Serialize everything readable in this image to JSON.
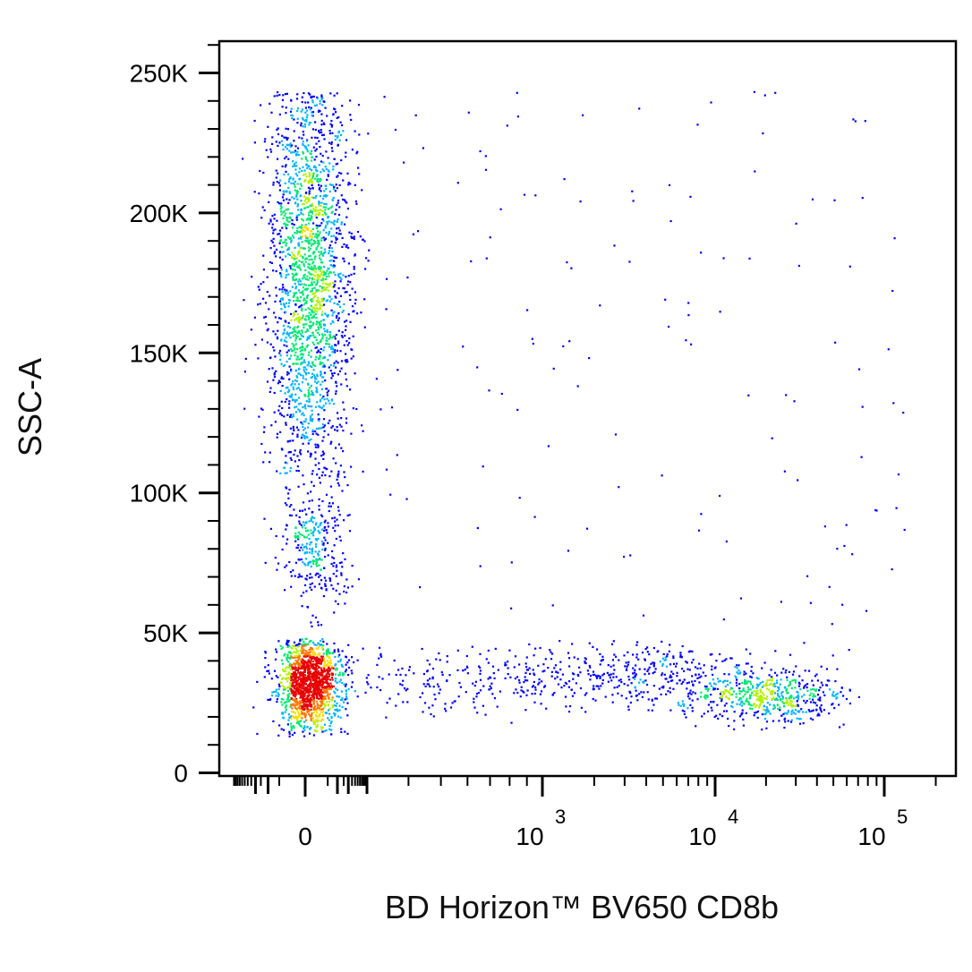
{
  "chart_data": {
    "type": "scatter",
    "title": "",
    "xlabel": "BD Horizon™ BV650 CD8b",
    "ylabel": "SSC-A",
    "x_scale": "biexponential",
    "y_scale": "linear",
    "ylim": [
      0,
      262144
    ],
    "y_ticks": [
      {
        "value": 0,
        "label": "0"
      },
      {
        "value": 50000,
        "label": "50K"
      },
      {
        "value": 100000,
        "label": "100K"
      },
      {
        "value": 150000,
        "label": "150K"
      },
      {
        "value": 200000,
        "label": "200K"
      },
      {
        "value": 250000,
        "label": "250K"
      }
    ],
    "x_ticks": [
      {
        "value": 0,
        "base": "0",
        "exp": ""
      },
      {
        "value": 1000,
        "base": "10",
        "exp": "3"
      },
      {
        "value": 10000,
        "base": "10",
        "exp": "4"
      },
      {
        "value": 100000,
        "base": "10",
        "exp": "5"
      }
    ],
    "grid": false,
    "legend": "none",
    "color_map": "density (blue → cyan → green → yellow → red)",
    "colors": [
      "#0000ff",
      "#00b4ff",
      "#00e673",
      "#b4f000",
      "#ffdc00",
      "#ff7800",
      "#e60000"
    ],
    "populations": [
      {
        "name": "CD8b-negative, high SSC",
        "x_center": 0,
        "y_center": 180000,
        "y_range": [
          80000,
          243000
        ],
        "relative_density": "high"
      },
      {
        "name": "CD8b-negative, low SSC",
        "x_center": 0,
        "y_center": 30000,
        "y_range": [
          15000,
          55000
        ],
        "relative_density": "very high"
      },
      {
        "name": "CD8b-positive, low SSC",
        "x_center": 16000,
        "y_center": 29000,
        "y_range": [
          15000,
          45000
        ],
        "relative_density": "medium"
      },
      {
        "name": "scattered events",
        "x_range": [
          100,
          100000
        ],
        "y_range": [
          20000,
          240000
        ],
        "relative_density": "sparse"
      }
    ]
  }
}
